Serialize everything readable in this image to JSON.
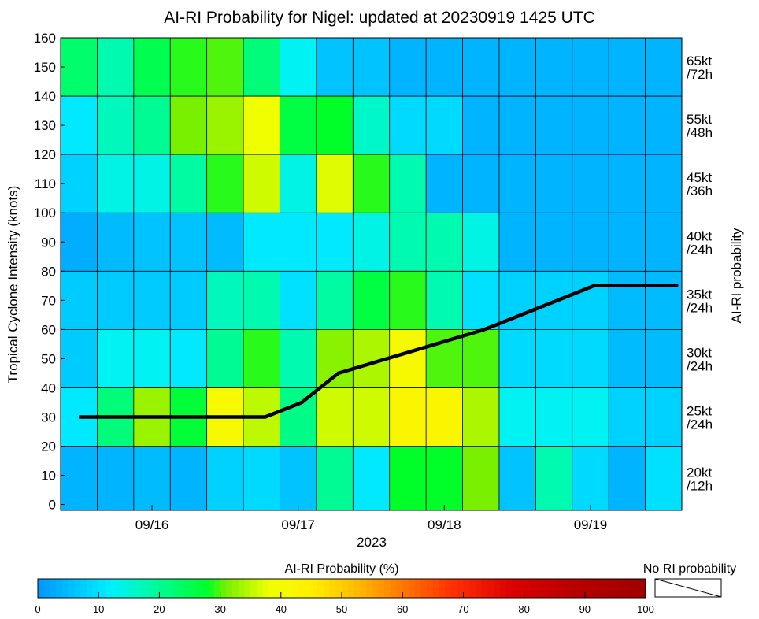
{
  "chart_data": {
    "type": "heatmap",
    "title": "AI-RI Probability for Nigel: updated at 20230919 1425 UTC",
    "xlabel": "2023",
    "ylabel": "Tropical Cyclone Intensity (knots)",
    "right_axis_label": "AI-RI probability",
    "x_tick_labels": [
      "09/16",
      "09/17",
      "09/18",
      "09/19"
    ],
    "y_ticks": [
      0,
      10,
      20,
      30,
      40,
      50,
      60,
      70,
      80,
      90,
      100,
      110,
      120,
      130,
      140,
      150,
      160
    ],
    "ylim": [
      -2,
      160
    ],
    "row_labels": [
      [
        "20kt",
        "/12h"
      ],
      [
        "25kt",
        "/24h"
      ],
      [
        "30kt",
        "/24h"
      ],
      [
        "35kt",
        "/24h"
      ],
      [
        "40kt",
        "/24h"
      ],
      [
        "45kt",
        "/36h"
      ],
      [
        "55kt",
        "/48h"
      ],
      [
        "65kt",
        "/72h"
      ]
    ],
    "rows": [
      {
        "y_from": -2,
        "y_to": 20
      },
      {
        "y_from": 20,
        "y_to": 40
      },
      {
        "y_from": 40,
        "y_to": 60
      },
      {
        "y_from": 60,
        "y_to": 80
      },
      {
        "y_from": 80,
        "y_to": 100
      },
      {
        "y_from": 100,
        "y_to": 120
      },
      {
        "y_from": 120,
        "y_to": 140
      },
      {
        "y_from": 140,
        "y_to": 160
      }
    ],
    "columns": 17,
    "probability_grid": [
      [
        4,
        4,
        5,
        4,
        8,
        9,
        6,
        20,
        11,
        28,
        28,
        31,
        6,
        18,
        9,
        4,
        10
      ],
      [
        11,
        22,
        33,
        27,
        41,
        35,
        21,
        36,
        36,
        42,
        42,
        34,
        13,
        13,
        13,
        8,
        8
      ],
      [
        7,
        13,
        13,
        11,
        20,
        29,
        18,
        32,
        34,
        41,
        30,
        30,
        9,
        9,
        9,
        5,
        5
      ],
      [
        7,
        7,
        7,
        7,
        17,
        18,
        10,
        19,
        26,
        29,
        18,
        10,
        8,
        8,
        8,
        5,
        5
      ],
      [
        3,
        5,
        6,
        6,
        5,
        11,
        11,
        11,
        14,
        18,
        18,
        14,
        4,
        4,
        4,
        4,
        4
      ],
      [
        8,
        14,
        14,
        19,
        29,
        36,
        14,
        37,
        29,
        18,
        4,
        4,
        4,
        4,
        4,
        4,
        4
      ],
      [
        11,
        17,
        20,
        31,
        33,
        38,
        26,
        28,
        16,
        9,
        9,
        4,
        4,
        4,
        4,
        4,
        4
      ],
      [
        23,
        18,
        25,
        29,
        30,
        22,
        13,
        6,
        6,
        4,
        4,
        4,
        4,
        4,
        4,
        4,
        4
      ]
    ],
    "series": [
      {
        "type": "line",
        "x": [
          0.5,
          5.6,
          6.6,
          7.6,
          11.6,
          12.6,
          14.6,
          16.9
        ],
        "y": [
          30,
          30,
          35,
          45,
          60,
          65,
          75,
          75
        ]
      }
    ],
    "colorbar": {
      "label": "AI-RI Probability (%)",
      "ticks": [
        0,
        10,
        20,
        30,
        40,
        50,
        60,
        70,
        80,
        90,
        100
      ],
      "range": [
        0,
        100
      ],
      "no_ri_label": "No RI probability"
    }
  }
}
